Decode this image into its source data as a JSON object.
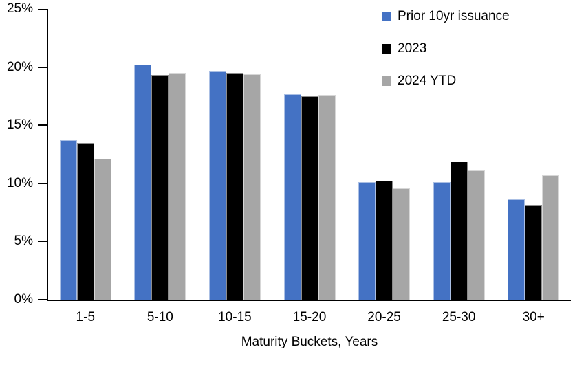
{
  "chart_data": {
    "type": "bar",
    "title": "",
    "xlabel": "Maturity Buckets, Years",
    "ylabel": "",
    "categories": [
      "1-5",
      "5-10",
      "10-15",
      "15-20",
      "20-25",
      "25-30",
      "30+"
    ],
    "series": [
      {
        "name": "Prior 10yr issuance",
        "color": "#4472C4",
        "values": [
          13.7,
          20.2,
          19.6,
          17.7,
          10.1,
          10.1,
          8.6
        ]
      },
      {
        "name": "2023",
        "color": "#000000",
        "values": [
          13.5,
          19.3,
          19.5,
          17.5,
          10.2,
          11.9,
          8.1
        ]
      },
      {
        "name": "2024 YTD",
        "color": "#A6A6A6",
        "values": [
          12.1,
          19.5,
          19.4,
          17.6,
          9.6,
          11.1,
          10.7
        ]
      }
    ],
    "ylim": [
      0,
      25
    ],
    "ytick_step": 5,
    "ytick_labels": [
      "0%",
      "5%",
      "10%",
      "15%",
      "20%",
      "25%"
    ],
    "axis_color": "#000000",
    "grid": false,
    "legend_position": "top-right-inside"
  }
}
